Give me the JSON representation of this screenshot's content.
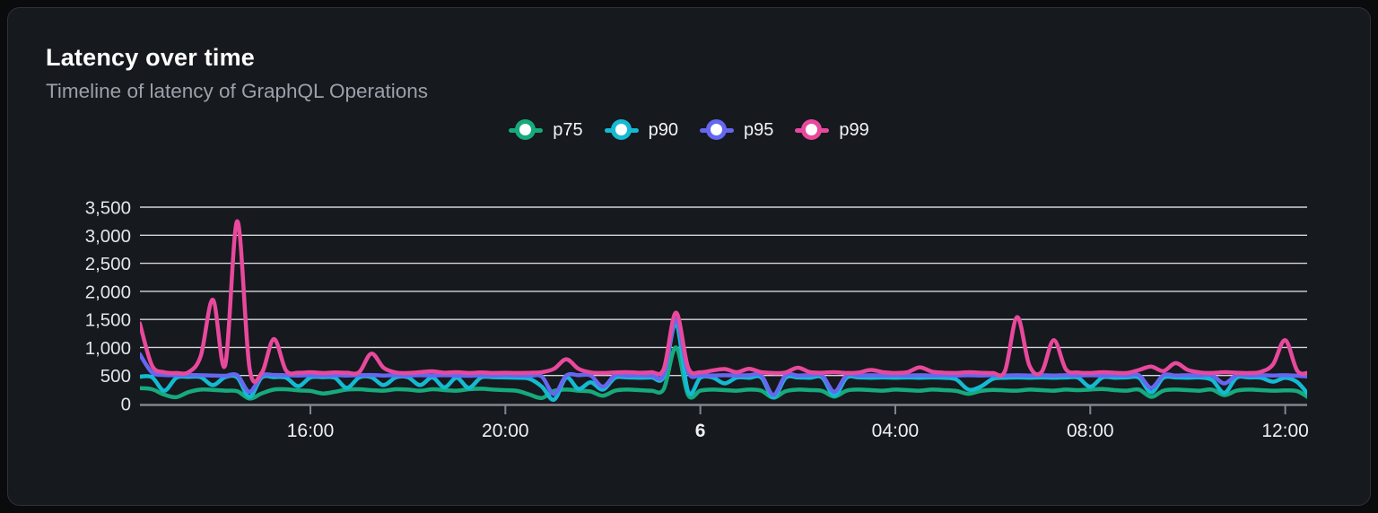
{
  "chart_data": {
    "type": "line",
    "title": "Latency over time",
    "subtitle": "Timeline of latency of GraphQL Operations",
    "grid": "horizontal",
    "legend_position": "top-center",
    "x_axis": {
      "description": "time of day, ~12:30 to ~12:30 next day, samples every 15 min",
      "start_hour": 12.5,
      "step_hours": 0.25,
      "ticks": [
        {
          "hour": 16,
          "label": "16:00",
          "bold": false
        },
        {
          "hour": 20,
          "label": "20:00",
          "bold": false
        },
        {
          "hour": 24,
          "label": "6",
          "bold": true
        },
        {
          "hour": 28,
          "label": "04:00",
          "bold": false
        },
        {
          "hour": 32,
          "label": "08:00",
          "bold": false
        },
        {
          "hour": 36,
          "label": "12:00",
          "bold": false
        }
      ]
    },
    "y_axis": {
      "min": 0,
      "max": 3500,
      "ticks": [
        {
          "value": 0,
          "label": "0"
        },
        {
          "value": 500,
          "label": "500"
        },
        {
          "value": 1000,
          "label": "1,000"
        },
        {
          "value": 1500,
          "label": "1,500"
        },
        {
          "value": 2000,
          "label": "2,000"
        },
        {
          "value": 2500,
          "label": "2,500"
        },
        {
          "value": 3000,
          "label": "3,000"
        },
        {
          "value": 3500,
          "label": "3,500"
        }
      ]
    },
    "series": [
      {
        "name": "p75",
        "color": "#16aa7c",
        "values": [
          275,
          255,
          160,
          115,
          205,
          250,
          245,
          230,
          220,
          90,
          180,
          250,
          255,
          235,
          225,
          180,
          210,
          250,
          255,
          240,
          230,
          255,
          250,
          230,
          255,
          240,
          230,
          255,
          265,
          250,
          240,
          225,
          160,
          100,
          225,
          250,
          230,
          215,
          140,
          230,
          250,
          240,
          230,
          260,
          1000,
          150,
          230,
          250,
          240,
          230,
          250,
          230,
          105,
          220,
          250,
          240,
          225,
          125,
          230,
          250,
          240,
          230,
          250,
          240,
          230,
          250,
          240,
          225,
          175,
          225,
          245,
          235,
          230,
          250,
          240,
          230,
          250,
          240,
          250,
          260,
          240,
          230,
          250,
          120,
          230,
          250,
          240,
          230,
          250,
          150,
          230,
          250,
          240,
          230,
          235,
          220,
          95
        ]
      },
      {
        "name": "p90",
        "color": "#14bad2",
        "values": [
          480,
          470,
          230,
          460,
          475,
          470,
          330,
          470,
          465,
          120,
          465,
          470,
          460,
          310,
          465,
          470,
          460,
          280,
          465,
          470,
          330,
          465,
          470,
          330,
          465,
          290,
          460,
          280,
          465,
          470,
          465,
          460,
          440,
          300,
          70,
          460,
          260,
          380,
          250,
          460,
          465,
          460,
          465,
          480,
          1430,
          210,
          460,
          465,
          360,
          465,
          460,
          465,
          110,
          460,
          465,
          460,
          465,
          140,
          460,
          465,
          460,
          465,
          460,
          465,
          460,
          465,
          460,
          430,
          250,
          300,
          440,
          460,
          465,
          460,
          465,
          460,
          465,
          460,
          300,
          465,
          460,
          465,
          460,
          200,
          460,
          465,
          460,
          465,
          420,
          190,
          460,
          465,
          460,
          390,
          460,
          380,
          130
        ]
      },
      {
        "name": "p95",
        "color": "#6567f0",
        "values": [
          880,
          555,
          510,
          505,
          510,
          505,
          500,
          495,
          505,
          210,
          495,
          510,
          505,
          500,
          505,
          500,
          505,
          500,
          505,
          510,
          500,
          505,
          500,
          505,
          500,
          505,
          500,
          495,
          505,
          500,
          505,
          500,
          495,
          480,
          170,
          500,
          505,
          500,
          300,
          505,
          500,
          505,
          500,
          520,
          1500,
          560,
          505,
          500,
          505,
          500,
          505,
          500,
          155,
          505,
          500,
          505,
          500,
          210,
          505,
          500,
          505,
          500,
          505,
          500,
          505,
          500,
          505,
          500,
          505,
          500,
          505,
          500,
          505,
          500,
          505,
          500,
          505,
          500,
          505,
          500,
          505,
          500,
          505,
          280,
          505,
          500,
          505,
          500,
          505,
          360,
          505,
          500,
          505,
          500,
          505,
          495,
          480
        ]
      },
      {
        "name": "p99",
        "color": "#e8499c",
        "values": [
          1430,
          680,
          560,
          545,
          560,
          850,
          1850,
          680,
          3250,
          640,
          545,
          1150,
          590,
          550,
          560,
          545,
          555,
          550,
          560,
          890,
          640,
          555,
          545,
          560,
          575,
          550,
          560,
          545,
          555,
          545,
          550,
          545,
          550,
          560,
          620,
          790,
          620,
          555,
          545,
          555,
          560,
          550,
          560,
          620,
          1620,
          640,
          560,
          590,
          615,
          560,
          620,
          560,
          545,
          555,
          640,
          560,
          550,
          560,
          545,
          555,
          600,
          560,
          545,
          560,
          645,
          570,
          550,
          545,
          560,
          550,
          545,
          580,
          1540,
          680,
          560,
          1130,
          610,
          555,
          545,
          560,
          550,
          545,
          600,
          660,
          580,
          720,
          600,
          555,
          545,
          560,
          550,
          545,
          565,
          700,
          1130,
          580,
          555
        ]
      }
    ]
  }
}
